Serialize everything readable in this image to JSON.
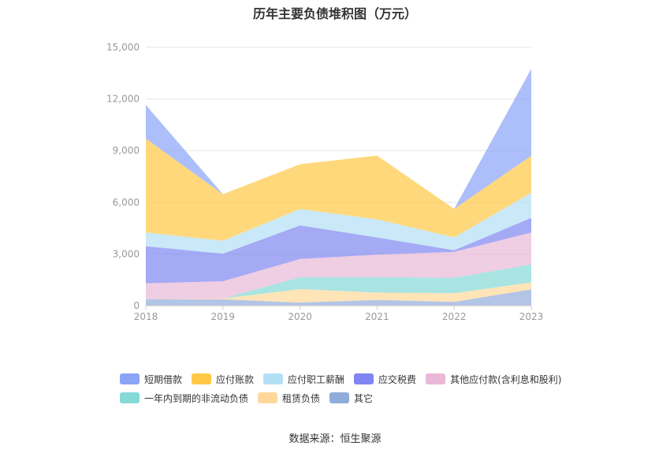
{
  "title": "历年主要负债堆积图（万元）",
  "source": "数据来源：恒生聚源",
  "chart_data": {
    "type": "area",
    "stacked": true,
    "title": "历年主要负债堆积图（万元）",
    "categories": [
      "2018",
      "2019",
      "2020",
      "2021",
      "2022",
      "2023"
    ],
    "ylim": [
      0,
      15000
    ],
    "yticks": [
      0,
      3000,
      6000,
      9000,
      12000,
      15000
    ],
    "ytick_labels": [
      "0",
      "3,000",
      "6,000",
      "9,000",
      "12,000",
      "15,000"
    ],
    "grid": true,
    "legend_position": "bottom",
    "series": [
      {
        "name": "其它",
        "color": "#91acdb",
        "values": [
          380,
          370,
          180,
          330,
          220,
          950
        ]
      },
      {
        "name": "租赁负债",
        "color": "#ffd899",
        "values": [
          0,
          50,
          780,
          430,
          500,
          400
        ]
      },
      {
        "name": "一年内到期的非流动负债",
        "color": "#85d9d6",
        "values": [
          0,
          0,
          700,
          900,
          900,
          1050
        ]
      },
      {
        "name": "其他应付款(含利息和股利)",
        "color": "#e8b8d6",
        "values": [
          920,
          1000,
          1050,
          1300,
          1500,
          1850
        ]
      },
      {
        "name": "应交税费",
        "color": "#7f86f1",
        "values": [
          2150,
          1600,
          1950,
          1000,
          100,
          850
        ]
      },
      {
        "name": "应付职工薪酬",
        "color": "#b4e0f5",
        "values": [
          800,
          750,
          950,
          1050,
          750,
          1450
        ]
      },
      {
        "name": "应付账款",
        "color": "#ffc845",
        "values": [
          5450,
          2700,
          2600,
          3700,
          1650,
          2150
        ]
      },
      {
        "name": "短期借款",
        "color": "#8aa4f8",
        "values": [
          1950,
          0,
          0,
          0,
          0,
          5050
        ]
      }
    ],
    "legend_rows": [
      [
        "短期借款",
        "应付账款",
        "应付职工薪酬",
        "应交税费",
        "其他应付款(含利息和股利)"
      ],
      [
        "一年内到期的非流动负债",
        "租赁负债",
        "其它"
      ]
    ]
  }
}
